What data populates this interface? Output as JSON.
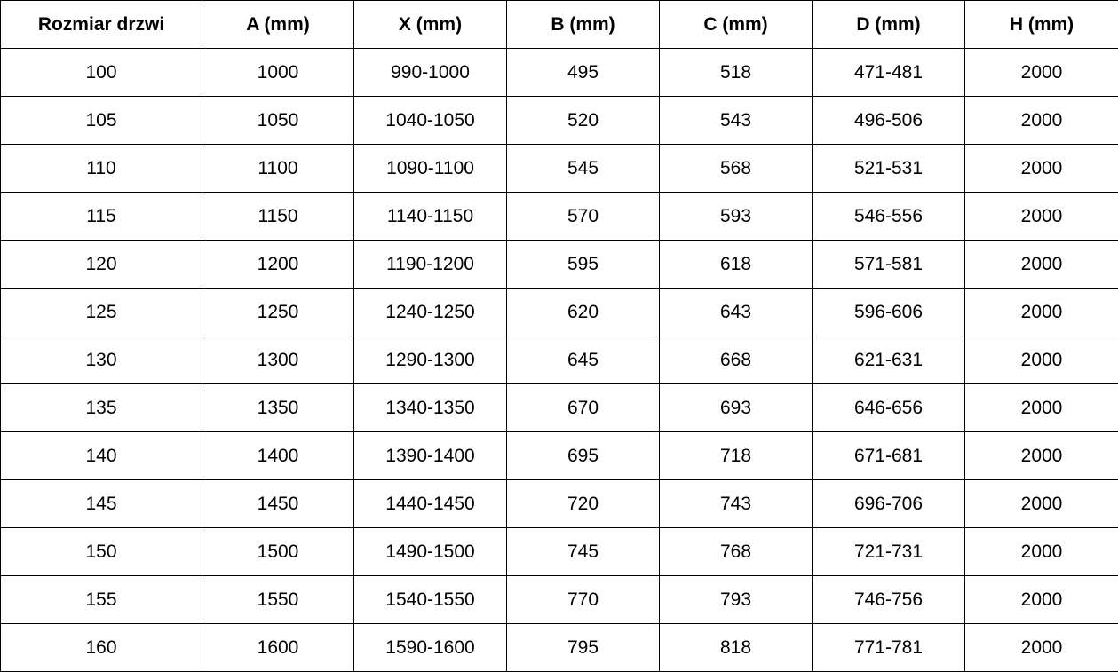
{
  "chart_data": {
    "type": "table",
    "title": "",
    "columns": [
      "Rozmiar drzwi",
      "A (mm)",
      "X (mm)",
      "B (mm)",
      "C (mm)",
      "D (mm)",
      "H (mm)"
    ],
    "rows": [
      [
        "100",
        "1000",
        "990-1000",
        "495",
        "518",
        "471-481",
        "2000"
      ],
      [
        "105",
        "1050",
        "1040-1050",
        "520",
        "543",
        "496-506",
        "2000"
      ],
      [
        "110",
        "1100",
        "1090-1100",
        "545",
        "568",
        "521-531",
        "2000"
      ],
      [
        "115",
        "1150",
        "1140-1150",
        "570",
        "593",
        "546-556",
        "2000"
      ],
      [
        "120",
        "1200",
        "1190-1200",
        "595",
        "618",
        "571-581",
        "2000"
      ],
      [
        "125",
        "1250",
        "1240-1250",
        "620",
        "643",
        "596-606",
        "2000"
      ],
      [
        "130",
        "1300",
        "1290-1300",
        "645",
        "668",
        "621-631",
        "2000"
      ],
      [
        "135",
        "1350",
        "1340-1350",
        "670",
        "693",
        "646-656",
        "2000"
      ],
      [
        "140",
        "1400",
        "1390-1400",
        "695",
        "718",
        "671-681",
        "2000"
      ],
      [
        "145",
        "1450",
        "1440-1450",
        "720",
        "743",
        "696-706",
        "2000"
      ],
      [
        "150",
        "1500",
        "1490-1500",
        "745",
        "768",
        "721-731",
        "2000"
      ],
      [
        "155",
        "1550",
        "1540-1550",
        "770",
        "793",
        "746-756",
        "2000"
      ],
      [
        "160",
        "1600",
        "1590-1600",
        "795",
        "818",
        "771-781",
        "2000"
      ]
    ],
    "layout": {
      "grid": true,
      "header_bold": true,
      "text_align": "center",
      "border_color": "#000000",
      "background_color": "#ffffff",
      "text_color": "#000000"
    }
  }
}
